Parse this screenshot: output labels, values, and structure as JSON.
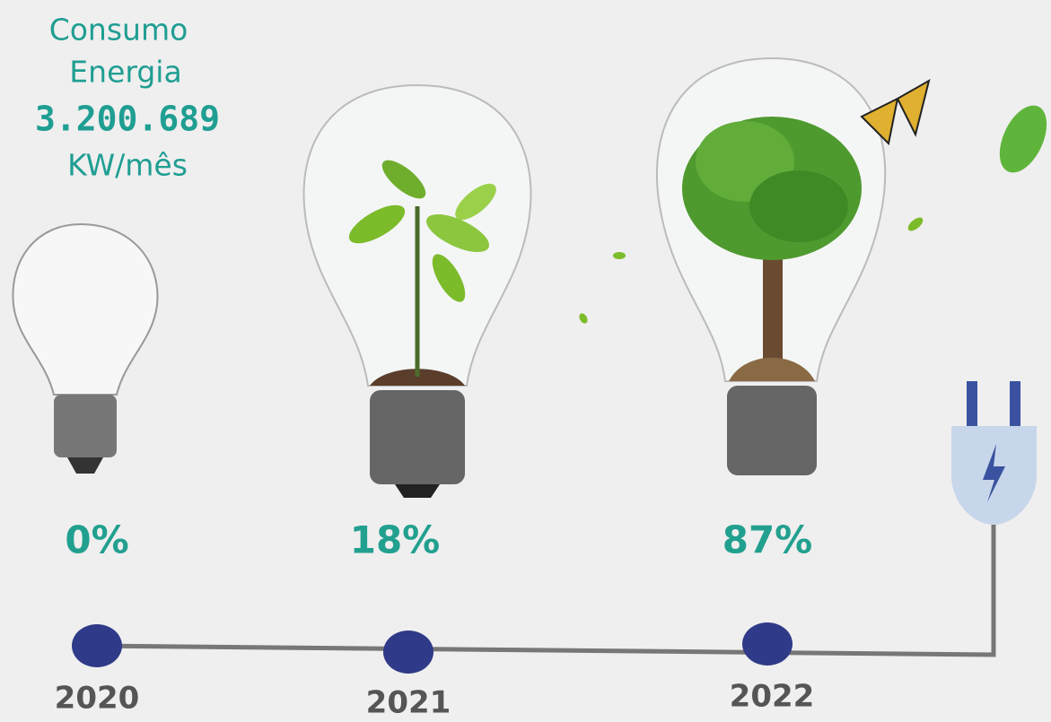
{
  "header": {
    "line1": "Consumo",
    "line2": "Energia",
    "value": "3.200.689",
    "unit": "KW/mês"
  },
  "milestones": [
    {
      "percent": "0%",
      "year": "2020"
    },
    {
      "percent": "18%",
      "year": "2021"
    },
    {
      "percent": "87%",
      "year": "2022"
    }
  ]
}
